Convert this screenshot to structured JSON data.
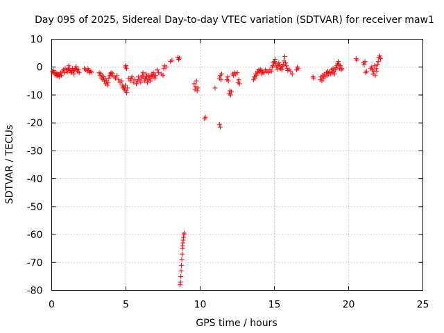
{
  "chart_data": {
    "type": "scatter",
    "title": "Day 095 of 2025, Sidereal Day-to-day VTEC variation (SDTVAR) for receiver maw1",
    "xlabel": "GPS time / hours",
    "ylabel": "SDTVAR / TECUs",
    "xlim": [
      0,
      25
    ],
    "ylim": [
      -80,
      10
    ],
    "xticks": [
      0,
      5,
      10,
      15,
      20,
      25
    ],
    "yticks": [
      10,
      0,
      -10,
      -20,
      -30,
      -40,
      -50,
      -60,
      -70,
      -80
    ],
    "xtick_labels": [
      "0",
      "5",
      "10",
      "15",
      "20",
      "25"
    ],
    "ytick_labels": [
      "10",
      "0",
      "-10",
      "-20",
      "-30",
      "-40",
      "-50",
      "-60",
      "-70",
      "-80"
    ],
    "grid": true,
    "marker": "plus",
    "marker_color": "#ff0000",
    "series": [
      {
        "name": "SDTVAR",
        "points": [
          [
            0.05,
            -1.5
          ],
          [
            0.1,
            -2.0
          ],
          [
            0.15,
            -1.2
          ],
          [
            0.2,
            -2.5
          ],
          [
            0.25,
            -2.0
          ],
          [
            0.3,
            -3.0
          ],
          [
            0.35,
            -2.2
          ],
          [
            0.4,
            -3.2
          ],
          [
            0.45,
            -2.6
          ],
          [
            0.5,
            -3.5
          ],
          [
            0.55,
            -2.8
          ],
          [
            0.6,
            -2.0
          ],
          [
            0.65,
            -3.0
          ],
          [
            0.7,
            -1.5
          ],
          [
            0.8,
            -1.0
          ],
          [
            0.85,
            -2.0
          ],
          [
            0.9,
            -0.5
          ],
          [
            1.0,
            -1.0
          ],
          [
            1.05,
            -1.8
          ],
          [
            1.1,
            -0.8
          ],
          [
            1.15,
            0.5
          ],
          [
            1.2,
            -0.5
          ],
          [
            1.25,
            -1.2
          ],
          [
            1.3,
            -2.0
          ],
          [
            1.35,
            -1.5
          ],
          [
            1.4,
            -0.5
          ],
          [
            1.45,
            -1.2
          ],
          [
            1.5,
            -2.5
          ],
          [
            1.55,
            -1.0
          ],
          [
            1.6,
            -0.5
          ],
          [
            1.65,
            0.2
          ],
          [
            1.7,
            -1.0
          ],
          [
            1.75,
            -1.5
          ],
          [
            1.8,
            -0.8
          ],
          [
            1.85,
            -2.0
          ],
          [
            2.2,
            -0.5
          ],
          [
            2.3,
            -1.0
          ],
          [
            2.4,
            -1.5
          ],
          [
            2.45,
            -0.5
          ],
          [
            2.5,
            -1.2
          ],
          [
            2.55,
            -2.0
          ],
          [
            2.6,
            -1.5
          ],
          [
            2.7,
            -1.8
          ],
          [
            3.2,
            -2.0
          ],
          [
            3.25,
            -3.0
          ],
          [
            3.3,
            -2.2
          ],
          [
            3.35,
            -4.0
          ],
          [
            3.4,
            -3.2
          ],
          [
            3.45,
            -4.5
          ],
          [
            3.5,
            -3.5
          ],
          [
            3.55,
            -5.0
          ],
          [
            3.6,
            -4.2
          ],
          [
            3.65,
            -6.0
          ],
          [
            3.7,
            -5.0
          ],
          [
            3.75,
            -6.5
          ],
          [
            3.8,
            -5.5
          ],
          [
            3.85,
            -4.0
          ],
          [
            3.9,
            -3.0
          ],
          [
            3.95,
            -2.5
          ],
          [
            4.0,
            -2.0
          ],
          [
            4.05,
            -3.0
          ],
          [
            4.1,
            -2.2
          ],
          [
            4.2,
            -3.5
          ],
          [
            4.3,
            -4.0
          ],
          [
            4.4,
            -3.0
          ],
          [
            4.5,
            -4.5
          ],
          [
            4.6,
            -5.5
          ],
          [
            4.7,
            -5.0
          ],
          [
            4.75,
            -6.5
          ],
          [
            4.8,
            -7.5
          ],
          [
            4.85,
            -7.0
          ],
          [
            4.9,
            -8.0
          ],
          [
            4.95,
            -6.5
          ],
          [
            5.0,
            -8.5
          ],
          [
            5.05,
            -9.2
          ],
          [
            5.1,
            -7.5
          ],
          [
            4.95,
            0.0
          ],
          [
            5.0,
            0.5
          ],
          [
            5.05,
            -0.5
          ],
          [
            5.2,
            -4.0
          ],
          [
            5.3,
            -5.0
          ],
          [
            5.35,
            -4.2
          ],
          [
            5.4,
            -3.5
          ],
          [
            5.5,
            -5.5
          ],
          [
            5.6,
            -4.5
          ],
          [
            5.7,
            -6.0
          ],
          [
            5.8,
            -5.0
          ],
          [
            5.85,
            -3.5
          ],
          [
            5.9,
            -4.5
          ],
          [
            6.0,
            -5.5
          ],
          [
            6.05,
            -4.0
          ],
          [
            6.1,
            -3.0
          ],
          [
            6.15,
            -2.0
          ],
          [
            6.2,
            -3.5
          ],
          [
            6.25,
            -5.0
          ],
          [
            6.3,
            -4.2
          ],
          [
            6.35,
            -2.5
          ],
          [
            6.4,
            -3.5
          ],
          [
            6.45,
            -5.5
          ],
          [
            6.5,
            -4.5
          ],
          [
            6.55,
            -3.0
          ],
          [
            6.6,
            -4.0
          ],
          [
            6.65,
            -5.0
          ],
          [
            6.7,
            -3.5
          ],
          [
            6.75,
            -2.5
          ],
          [
            6.8,
            -3.5
          ],
          [
            6.85,
            -2.0
          ],
          [
            6.9,
            -3.0
          ],
          [
            6.95,
            -4.0
          ],
          [
            7.0,
            -3.0
          ],
          [
            7.1,
            -1.0
          ],
          [
            7.2,
            -2.0
          ],
          [
            7.4,
            -2.5
          ],
          [
            7.5,
            -3.0
          ],
          [
            7.55,
            -0.5
          ],
          [
            7.6,
            0.5
          ],
          [
            7.7,
            0.0
          ],
          [
            8.0,
            2.0
          ],
          [
            8.1,
            2.5
          ],
          [
            8.5,
            3.5
          ],
          [
            8.55,
            2.8
          ],
          [
            8.6,
            3.2
          ],
          [
            8.65,
            -78.0
          ],
          [
            8.68,
            -77.0
          ],
          [
            8.7,
            -75.0
          ],
          [
            8.72,
            -73.0
          ],
          [
            8.74,
            -71.0
          ],
          [
            8.76,
            -69.0
          ],
          [
            8.78,
            -67.0
          ],
          [
            8.8,
            -65.0
          ],
          [
            8.82,
            -64.0
          ],
          [
            8.84,
            -63.0
          ],
          [
            8.86,
            -62.0
          ],
          [
            8.88,
            -61.0
          ],
          [
            8.9,
            -60.0
          ],
          [
            8.92,
            -59.5
          ],
          [
            9.6,
            -6.0
          ],
          [
            9.65,
            -8.0
          ],
          [
            9.7,
            -7.0
          ],
          [
            9.75,
            -5.0
          ],
          [
            9.8,
            -8.5
          ],
          [
            9.85,
            -7.5
          ],
          [
            10.3,
            -18.5
          ],
          [
            10.35,
            -18.0
          ],
          [
            11.0,
            -7.5
          ],
          [
            11.3,
            -20.5
          ],
          [
            11.35,
            -21.5
          ],
          [
            11.3,
            -4.0
          ],
          [
            11.35,
            -3.0
          ],
          [
            11.4,
            -4.5
          ],
          [
            11.45,
            -2.5
          ],
          [
            11.8,
            -4.5
          ],
          [
            11.85,
            -3.5
          ],
          [
            11.9,
            -5.0
          ],
          [
            11.95,
            -9.5
          ],
          [
            12.0,
            -8.5
          ],
          [
            12.05,
            -10.0
          ],
          [
            12.1,
            -8.8
          ],
          [
            12.2,
            -2.5
          ],
          [
            12.25,
            -3.0
          ],
          [
            12.3,
            -2.0
          ],
          [
            12.4,
            -2.5
          ],
          [
            12.5,
            -2.0
          ],
          [
            12.55,
            -5.5
          ],
          [
            12.6,
            -4.5
          ],
          [
            12.65,
            -6.0
          ],
          [
            13.6,
            -4.5
          ],
          [
            13.65,
            -3.5
          ],
          [
            13.7,
            -4.0
          ],
          [
            13.75,
            -2.5
          ],
          [
            13.8,
            -3.0
          ],
          [
            13.85,
            -1.5
          ],
          [
            13.9,
            -2.0
          ],
          [
            13.95,
            -1.0
          ],
          [
            14.0,
            -1.5
          ],
          [
            14.05,
            -0.8
          ],
          [
            14.1,
            -1.2
          ],
          [
            14.15,
            -2.5
          ],
          [
            14.2,
            -1.8
          ],
          [
            14.3,
            -2.0
          ],
          [
            14.4,
            -1.0
          ],
          [
            14.5,
            -1.5
          ],
          [
            14.6,
            -2.0
          ],
          [
            14.7,
            -1.0
          ],
          [
            14.8,
            -1.5
          ],
          [
            14.85,
            0.0
          ],
          [
            14.9,
            0.5
          ],
          [
            14.95,
            1.5
          ],
          [
            15.0,
            2.0
          ],
          [
            15.05,
            2.8
          ],
          [
            15.1,
            1.2
          ],
          [
            15.15,
            0.0
          ],
          [
            15.2,
            -0.8
          ],
          [
            15.25,
            0.5
          ],
          [
            15.3,
            1.5
          ],
          [
            15.35,
            0.8
          ],
          [
            15.4,
            -0.5
          ],
          [
            15.45,
            0.0
          ],
          [
            15.5,
            -1.0
          ],
          [
            15.55,
            0.2
          ],
          [
            15.6,
            1.0
          ],
          [
            15.65,
            2.2
          ],
          [
            15.7,
            3.8
          ],
          [
            15.75,
            1.5
          ],
          [
            15.8,
            0.5
          ],
          [
            15.85,
            -0.5
          ],
          [
            15.9,
            -1.2
          ],
          [
            16.0,
            -0.8
          ],
          [
            16.1,
            -1.5
          ],
          [
            16.2,
            -2.5
          ],
          [
            16.5,
            -1.0
          ],
          [
            16.55,
            0.0
          ],
          [
            16.6,
            -0.5
          ],
          [
            17.6,
            -3.5
          ],
          [
            17.65,
            -4.0
          ],
          [
            18.1,
            -4.5
          ],
          [
            18.15,
            -3.5
          ],
          [
            18.2,
            -5.0
          ],
          [
            18.25,
            -3.0
          ],
          [
            18.3,
            -4.0
          ],
          [
            18.35,
            -2.5
          ],
          [
            18.4,
            -3.5
          ],
          [
            18.5,
            -2.0
          ],
          [
            18.55,
            -3.0
          ],
          [
            18.6,
            -1.5
          ],
          [
            18.65,
            -2.5
          ],
          [
            18.7,
            -1.8
          ],
          [
            18.8,
            -2.5
          ],
          [
            18.85,
            -1.0
          ],
          [
            18.9,
            -2.0
          ],
          [
            18.95,
            -0.5
          ],
          [
            19.0,
            -1.5
          ],
          [
            19.05,
            -2.5
          ],
          [
            19.1,
            -1.0
          ],
          [
            19.15,
            -0.2
          ],
          [
            19.2,
            0.5
          ],
          [
            19.25,
            1.2
          ],
          [
            19.3,
            2.0
          ],
          [
            19.35,
            0.8
          ],
          [
            19.4,
            -0.5
          ],
          [
            19.45,
            0.5
          ],
          [
            19.5,
            -1.0
          ],
          [
            19.55,
            -0.5
          ],
          [
            20.5,
            3.0
          ],
          [
            20.55,
            2.5
          ],
          [
            21.0,
            1.5
          ],
          [
            21.05,
            0.8
          ],
          [
            21.1,
            2.0
          ],
          [
            21.15,
            -2.0
          ],
          [
            21.2,
            -1.5
          ],
          [
            21.5,
            -0.5
          ],
          [
            21.55,
            0.0
          ],
          [
            21.6,
            -1.0
          ],
          [
            21.65,
            -2.5
          ],
          [
            21.7,
            -1.5
          ],
          [
            21.75,
            0.5
          ],
          [
            21.8,
            -3.0
          ],
          [
            21.85,
            -0.5
          ],
          [
            21.9,
            -1.5
          ],
          [
            21.95,
            1.0
          ],
          [
            22.0,
            2.0
          ],
          [
            22.05,
            3.5
          ],
          [
            22.1,
            4.0
          ],
          [
            22.15,
            3.0
          ]
        ]
      }
    ]
  }
}
